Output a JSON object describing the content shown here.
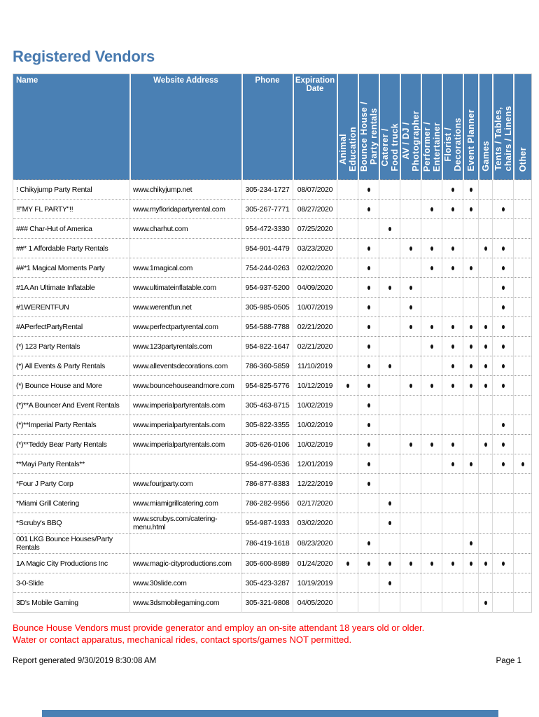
{
  "page": {
    "title": "Registered Vendors",
    "footnote_line1": "Bounce House Vendors must provide generator and employ an on-site attendant 18 years old or older.",
    "footnote_line2": "Water or contact apparatus, mechanical rides, contact sports/games NOT permitted.",
    "report_generated": "Report generated 9/30/2019 8:30:08 AM",
    "page_number": "Page 1"
  },
  "colors": {
    "header_bg": "#4a80b4",
    "title_text": "#4779af",
    "footnote_red": "#fe0000",
    "bullet": "#121212"
  },
  "table": {
    "static_columns": [
      "Name",
      "Website Address",
      "Phone",
      "Expiration Date"
    ],
    "category_columns": [
      "Animal\nEducation",
      "Bounce House /\nParty rentals",
      "Caterer /\nFood truck",
      "AV / DJ /\nPhotographer",
      "Performer /\nEntertainer",
      "Florist /\nDecorations",
      "Event Planner",
      "Games",
      "Tents / Tables,\nchairs / Linens",
      "Other"
    ],
    "bullet_glyph": "•",
    "rows": [
      {
        "name": "! Chikyjump Party Rental",
        "website": "www.chikyjump.net",
        "phone": "305-234-1727",
        "expiration": "08/07/2020",
        "categories": [
          0,
          1,
          0,
          0,
          0,
          1,
          1,
          0,
          0,
          0
        ]
      },
      {
        "name": "!!\"MY FL PARTY\"!!",
        "website": "www.myfloridapartyrental.com",
        "phone": "305-267-7771",
        "expiration": "08/27/2020",
        "categories": [
          0,
          1,
          0,
          0,
          1,
          1,
          1,
          0,
          1,
          0
        ]
      },
      {
        "name": "### Char-Hut of America",
        "website": "www.charhut.com",
        "phone": "954-472-3330",
        "expiration": "07/25/2020",
        "categories": [
          0,
          0,
          1,
          0,
          0,
          0,
          0,
          0,
          0,
          0
        ]
      },
      {
        "name": "##* 1 Affordable Party Rentals",
        "website": "",
        "phone": "954-901-4479",
        "expiration": "03/23/2020",
        "categories": [
          0,
          1,
          0,
          1,
          1,
          1,
          0,
          1,
          1,
          0
        ]
      },
      {
        "name": "##*1 Magical Moments Party",
        "website": "www.1magical.com",
        "phone": "754-244-0263",
        "expiration": "02/02/2020",
        "categories": [
          0,
          1,
          0,
          0,
          1,
          1,
          1,
          0,
          1,
          0
        ]
      },
      {
        "name": "#1A An Ultimate Inflatable",
        "website": "www.ultimateinflatable.com",
        "phone": "954-937-5200",
        "expiration": "04/09/2020",
        "categories": [
          0,
          1,
          1,
          1,
          0,
          0,
          0,
          0,
          1,
          0
        ]
      },
      {
        "name": "#1WERENTFUN",
        "website": "www.werentfun.net",
        "phone": "305-985-0505",
        "expiration": "10/07/2019",
        "categories": [
          0,
          1,
          0,
          1,
          0,
          0,
          0,
          0,
          1,
          0
        ]
      },
      {
        "name": "#APerfectPartyRental",
        "website": "www.perfectpartyrental.com",
        "phone": "954-588-7788",
        "expiration": "02/21/2020",
        "categories": [
          0,
          1,
          0,
          1,
          1,
          1,
          1,
          1,
          1,
          0
        ]
      },
      {
        "name": "(*) 123 Party Rentals",
        "website": "www.123partyrentals.com",
        "phone": "954-822-1647",
        "expiration": "02/21/2020",
        "categories": [
          0,
          1,
          0,
          0,
          1,
          1,
          1,
          1,
          1,
          0
        ]
      },
      {
        "name": "(*) All Events & Party Rentals",
        "website": "www.alleventsdecorations.com",
        "phone": "786-360-5859",
        "expiration": "11/10/2019",
        "categories": [
          0,
          1,
          1,
          0,
          0,
          1,
          1,
          1,
          1,
          0
        ]
      },
      {
        "name": "(*) Bounce House and More",
        "website": "www.bouncehouseandmore.com",
        "phone": "954-825-5776",
        "expiration": "10/12/2019",
        "categories": [
          1,
          1,
          0,
          1,
          1,
          1,
          1,
          1,
          1,
          0
        ]
      },
      {
        "name": "(*)**A Bouncer And Event Rentals",
        "website": "www.imperialpartyrentals.com",
        "phone": "305-463-8715",
        "expiration": "10/02/2019",
        "categories": [
          0,
          1,
          0,
          0,
          0,
          0,
          0,
          0,
          0,
          0
        ]
      },
      {
        "name": "(*)**Imperial Party Rentals",
        "website": "www.imperialpartyrentals.com",
        "phone": "305-822-3355",
        "expiration": "10/02/2019",
        "categories": [
          0,
          1,
          0,
          0,
          0,
          0,
          0,
          0,
          1,
          0
        ]
      },
      {
        "name": "(*)**Teddy Bear Party Rentals",
        "website": "www.imperialpartyrentals.com",
        "phone": "305-626-0106",
        "expiration": "10/02/2019",
        "categories": [
          0,
          1,
          0,
          1,
          1,
          1,
          0,
          1,
          1,
          0
        ]
      },
      {
        "name": "**Mayi Party Rentals**",
        "website": "",
        "phone": "954-496-0536",
        "expiration": "12/01/2019",
        "categories": [
          0,
          1,
          0,
          0,
          0,
          1,
          1,
          0,
          1,
          1
        ]
      },
      {
        "name": "*Four J Party Corp",
        "website": "www.fourjparty.com",
        "phone": "786-877-8383",
        "expiration": "12/22/2019",
        "categories": [
          0,
          1,
          0,
          0,
          0,
          0,
          0,
          0,
          0,
          0
        ]
      },
      {
        "name": "*Miami Grill Catering",
        "website": "www.miamigrillcatering.com",
        "phone": "786-282-9956",
        "expiration": "02/17/2020",
        "categories": [
          0,
          0,
          1,
          0,
          0,
          0,
          0,
          0,
          0,
          0
        ]
      },
      {
        "name": "*Scruby's BBQ",
        "website": "www.scrubys.com/catering-menu.html",
        "phone": "954-987-1933",
        "expiration": "03/02/2020",
        "categories": [
          0,
          0,
          1,
          0,
          0,
          0,
          0,
          0,
          0,
          0
        ]
      },
      {
        "name": "001 LKG Bounce Houses/Party Rentals",
        "website": "",
        "phone": "786-419-1618",
        "expiration": "08/23/2020",
        "categories": [
          0,
          1,
          0,
          0,
          0,
          0,
          1,
          0,
          0,
          0
        ]
      },
      {
        "name": "1A Magic City Productions Inc",
        "website": "www.magic-cityproductions.com",
        "phone": "305-600-8989",
        "expiration": "01/24/2020",
        "categories": [
          1,
          1,
          1,
          1,
          1,
          1,
          1,
          1,
          1,
          0
        ]
      },
      {
        "name": "3-0-Slide",
        "website": "www.30slide.com",
        "phone": "305-423-3287",
        "expiration": "10/19/2019",
        "categories": [
          0,
          0,
          1,
          0,
          0,
          0,
          0,
          0,
          0,
          0
        ]
      },
      {
        "name": "3D's Mobile Gaming",
        "website": "www.3dsmobilegaming.com",
        "phone": "305-321-9808",
        "expiration": "04/05/2020",
        "categories": [
          0,
          0,
          0,
          0,
          0,
          0,
          0,
          1,
          0,
          0
        ]
      }
    ]
  }
}
